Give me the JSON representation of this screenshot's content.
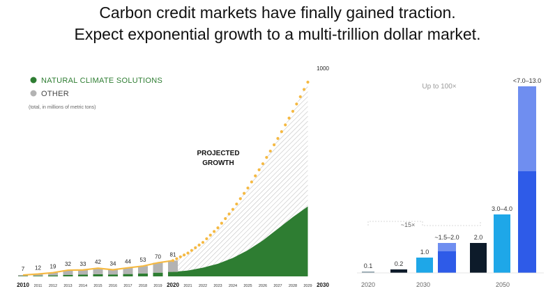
{
  "headline": {
    "line1": "Carbon credit markets have finally gained traction.",
    "line2": "Expect exponential growth to a multi-trillion dollar market."
  },
  "chart_data": [
    {
      "type": "bar",
      "legend": [
        {
          "label": "NATURAL CLIMATE SOLUTIONS",
          "color": "#2e7d32"
        },
        {
          "label": "OTHER",
          "color": "#b3b3b3"
        }
      ],
      "note": "(total, in millions of metric tons)",
      "categories": [
        "2010",
        "2011",
        "2012",
        "2013",
        "2014",
        "2015",
        "2016",
        "2017",
        "2018",
        "2019",
        "2020"
      ],
      "bold_ticks": [
        "2010",
        "2020"
      ],
      "totals": [
        7,
        12,
        19,
        32,
        33,
        42,
        34,
        44,
        53,
        70,
        81
      ],
      "series": [
        {
          "name": "NATURAL CLIMATE SOLUTIONS",
          "values": [
            2,
            3,
            5,
            8,
            9,
            11,
            10,
            12,
            15,
            19,
            23
          ]
        },
        {
          "name": "OTHER",
          "values": [
            5,
            9,
            14,
            24,
            24,
            31,
            24,
            32,
            38,
            51,
            58
          ]
        }
      ],
      "projection": {
        "label_line1": "PROJECTED",
        "label_line2": "GROWTH",
        "years": [
          "2021",
          "2022",
          "2023",
          "2024",
          "2025",
          "2026",
          "2027",
          "2028",
          "2029",
          "2030"
        ],
        "end_label": "1000",
        "end_year_bold": "2030",
        "total_curve": [
          81,
          120,
          175,
          250,
          345,
          455,
          580,
          710,
          850,
          1000
        ],
        "natural_curve": [
          23,
          30,
          45,
          65,
          95,
          135,
          185,
          245,
          305,
          360
        ]
      },
      "ylim": [
        0,
        1000
      ],
      "line_color": "#f5b942"
    },
    {
      "type": "bar",
      "annotation_growth": "Up to 100×",
      "annotation_mid": "~15×",
      "groups": [
        "2020",
        "2030",
        "2050"
      ],
      "bars": [
        {
          "group": "2020",
          "label": "0.1",
          "value": 0.1,
          "color": "#8fa3ad"
        },
        {
          "group": "2030",
          "label": "0.2",
          "value": 0.2,
          "color": "#0d1b2a"
        },
        {
          "group": "2030",
          "label": "1.0",
          "value": 1.0,
          "color": "#1ea7e8"
        },
        {
          "group": "2030",
          "label": "~1.5–2.0",
          "value": 1.5,
          "upper": 2.0,
          "color": "#2e5be8",
          "upper_color": "#6f8ef0"
        },
        {
          "group": "2050",
          "label": "2.0",
          "value": 2.0,
          "color": "#0d1b2a"
        },
        {
          "group": "2050",
          "label": "3.0–4.0",
          "value": 4.0,
          "color": "#1ea7e8"
        },
        {
          "group": "2050",
          "label": "<7.0–13.0",
          "value": 7.0,
          "upper": 13.0,
          "color": "#2e5be8",
          "upper_color": "#6f8ef0"
        }
      ],
      "ylim": [
        0,
        13
      ]
    }
  ]
}
